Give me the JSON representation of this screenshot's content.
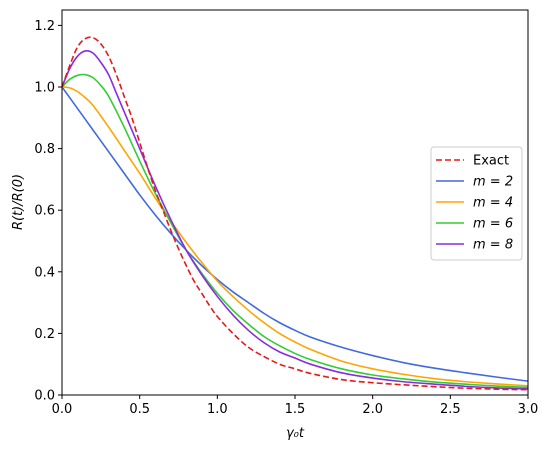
{
  "chart_data": {
    "type": "line",
    "xlabel": "γ₀t",
    "ylabel": "R(t)/R(0)",
    "xlim": [
      0,
      3.0
    ],
    "ylim": [
      0,
      1.25
    ],
    "xticks": [
      "0.0",
      "0.5",
      "1.0",
      "1.5",
      "2.0",
      "2.5",
      "3.0"
    ],
    "yticks": [
      "0.0",
      "0.2",
      "0.4",
      "0.6",
      "0.8",
      "1.0",
      "1.2"
    ],
    "grid": false,
    "legend_position": "center-right",
    "series": [
      {
        "name": "Exact",
        "color": "#e41a1c",
        "dash": "dashed",
        "x": [
          0.0,
          0.05,
          0.1,
          0.15,
          0.2,
          0.25,
          0.3,
          0.35,
          0.4,
          0.45,
          0.5,
          0.55,
          0.6,
          0.65,
          0.7,
          0.75,
          0.8,
          0.85,
          0.9,
          0.95,
          1.0,
          1.1,
          1.2,
          1.3,
          1.4,
          1.5,
          1.6,
          1.8,
          2.0,
          2.2,
          2.4,
          2.6,
          2.8,
          3.0
        ],
        "y": [
          1.0,
          1.07,
          1.13,
          1.157,
          1.16,
          1.14,
          1.1,
          1.04,
          0.97,
          0.9,
          0.82,
          0.74,
          0.665,
          0.6,
          0.535,
          0.475,
          0.42,
          0.37,
          0.33,
          0.29,
          0.255,
          0.2,
          0.155,
          0.125,
          0.1,
          0.085,
          0.07,
          0.05,
          0.04,
          0.033,
          0.027,
          0.022,
          0.019,
          0.017
        ]
      },
      {
        "name": "m = 2",
        "color": "#4169e1",
        "dash": "solid",
        "x": [
          0.0,
          0.1,
          0.2,
          0.3,
          0.4,
          0.5,
          0.6,
          0.7,
          0.8,
          0.9,
          1.0,
          1.1,
          1.2,
          1.3,
          1.4,
          1.5,
          1.6,
          1.8,
          2.0,
          2.2,
          2.4,
          2.6,
          2.8,
          3.0
        ],
        "y": [
          1.0,
          0.93,
          0.86,
          0.79,
          0.72,
          0.65,
          0.585,
          0.525,
          0.47,
          0.42,
          0.375,
          0.335,
          0.3,
          0.265,
          0.235,
          0.21,
          0.188,
          0.155,
          0.128,
          0.105,
          0.087,
          0.072,
          0.058,
          0.045
        ]
      },
      {
        "name": "m = 4",
        "color": "#ffa500",
        "dash": "solid",
        "x": [
          0.0,
          0.05,
          0.1,
          0.15,
          0.2,
          0.3,
          0.4,
          0.5,
          0.6,
          0.7,
          0.8,
          0.9,
          1.0,
          1.1,
          1.2,
          1.3,
          1.4,
          1.5,
          1.6,
          1.8,
          2.0,
          2.2,
          2.4,
          2.6,
          2.8,
          3.0
        ],
        "y": [
          1.0,
          0.997,
          0.985,
          0.965,
          0.94,
          0.87,
          0.795,
          0.72,
          0.64,
          0.565,
          0.495,
          0.43,
          0.37,
          0.32,
          0.275,
          0.235,
          0.2,
          0.172,
          0.148,
          0.11,
          0.085,
          0.067,
          0.053,
          0.043,
          0.036,
          0.03
        ]
      },
      {
        "name": "m = 6",
        "color": "#32cd32",
        "dash": "solid",
        "x": [
          0.0,
          0.05,
          0.1,
          0.15,
          0.2,
          0.25,
          0.3,
          0.4,
          0.5,
          0.6,
          0.7,
          0.8,
          0.9,
          1.0,
          1.1,
          1.2,
          1.3,
          1.4,
          1.5,
          1.6,
          1.8,
          2.0,
          2.2,
          2.4,
          2.6,
          2.8,
          3.0
        ],
        "y": [
          1.0,
          1.025,
          1.038,
          1.04,
          1.03,
          1.005,
          0.97,
          0.87,
          0.76,
          0.655,
          0.56,
          0.47,
          0.395,
          0.33,
          0.275,
          0.23,
          0.19,
          0.16,
          0.135,
          0.115,
          0.085,
          0.065,
          0.052,
          0.042,
          0.035,
          0.029,
          0.025
        ]
      },
      {
        "name": "m = 8",
        "color": "#8a2be2",
        "dash": "solid",
        "x": [
          0.0,
          0.05,
          0.1,
          0.15,
          0.2,
          0.25,
          0.3,
          0.35,
          0.4,
          0.5,
          0.6,
          0.7,
          0.8,
          0.9,
          1.0,
          1.1,
          1.2,
          1.3,
          1.4,
          1.5,
          1.6,
          1.8,
          2.0,
          2.2,
          2.4,
          2.6,
          2.8,
          3.0
        ],
        "y": [
          1.0,
          1.06,
          1.1,
          1.117,
          1.11,
          1.08,
          1.04,
          0.98,
          0.92,
          0.8,
          0.68,
          0.57,
          0.47,
          0.39,
          0.32,
          0.26,
          0.21,
          0.17,
          0.14,
          0.12,
          0.1,
          0.072,
          0.055,
          0.043,
          0.035,
          0.028,
          0.023,
          0.02
        ]
      }
    ]
  }
}
